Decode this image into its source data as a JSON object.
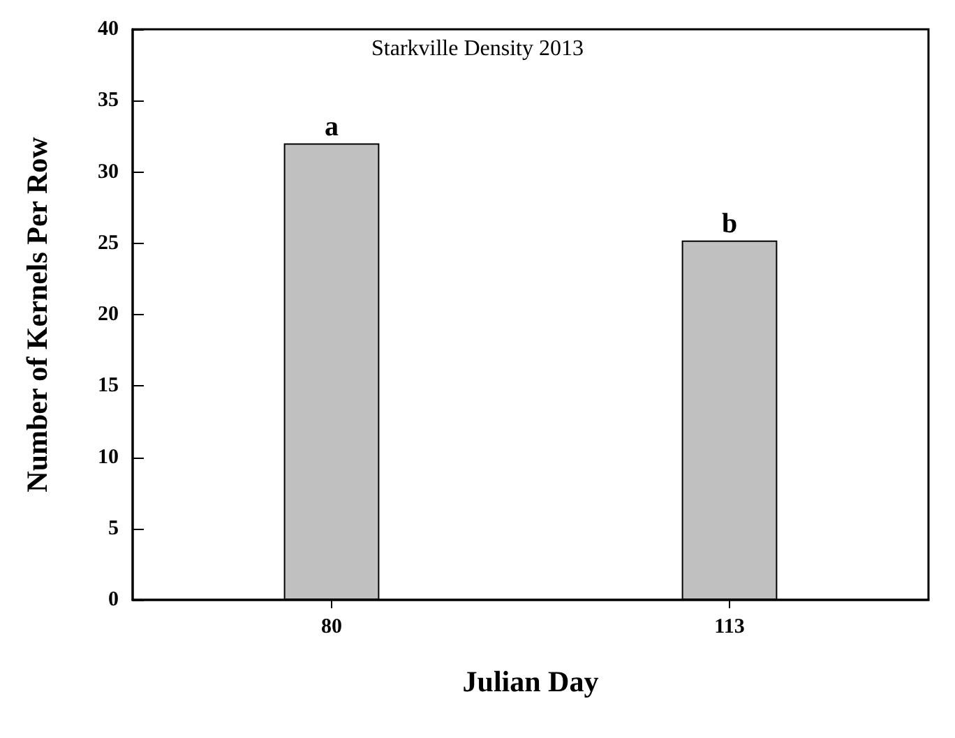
{
  "chart_data": {
    "type": "bar",
    "title": "Starkville Density 2013",
    "xlabel": "Julian Day",
    "ylabel": "Number of Kernels Per Row",
    "categories": [
      "80",
      "113"
    ],
    "values": [
      32,
      25.2
    ],
    "color": "#c0c0c0",
    "ylim": [
      0,
      40
    ],
    "yticks": [
      0,
      5,
      10,
      15,
      20,
      25,
      30,
      35,
      40
    ],
    "grid": false,
    "annotations": [
      {
        "text": "a",
        "x": "80",
        "y": 32
      },
      {
        "text": "b",
        "x": "113",
        "y": 25.2
      }
    ]
  }
}
